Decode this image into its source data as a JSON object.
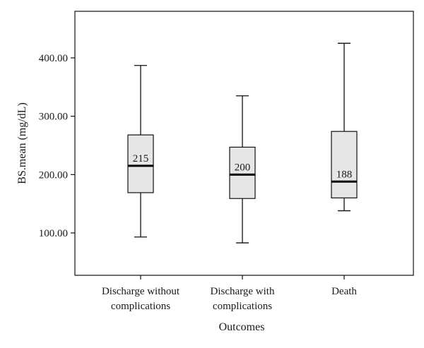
{
  "chart_data": {
    "type": "box",
    "xlabel": "Outcomes",
    "ylabel": "BS.mean (mg/dL)",
    "ylim": [
      40,
      465
    ],
    "yticks": [
      100,
      200,
      300,
      400
    ],
    "ytick_labels": [
      "100.00",
      "200.00",
      "300.00",
      "400.00"
    ],
    "grid": false,
    "groups": [
      {
        "label_lines": [
          "Discharge without",
          "complications"
        ],
        "min": 93,
        "q1": 169,
        "median": 215,
        "q3": 268,
        "max": 387,
        "median_label": "215"
      },
      {
        "label_lines": [
          "Discharge with",
          "complications"
        ],
        "min": 83,
        "q1": 159,
        "median": 200,
        "q3": 247,
        "max": 335,
        "median_label": "200"
      },
      {
        "label_lines": [
          "Death"
        ],
        "min": 138,
        "q1": 160,
        "median": 188,
        "q3": 274,
        "max": 425,
        "median_label": "188"
      }
    ]
  }
}
